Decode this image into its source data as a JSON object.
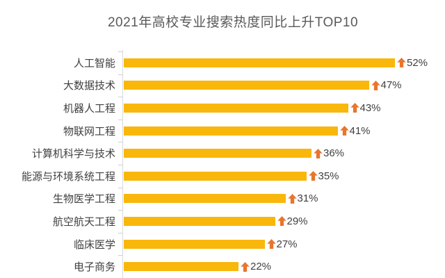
{
  "chart_data": {
    "type": "bar",
    "orientation": "horizontal",
    "title": "2021年高校专业搜索热度同比上升TOP10",
    "categories": [
      "人工智能",
      "大数据技术",
      "机器人工程",
      "物联网工程",
      "计算机科学与技术",
      "能源与环境系统工程",
      "生物医学工程",
      "航空航天工程",
      "临床医学",
      "电子商务"
    ],
    "values": [
      52,
      47,
      43,
      41,
      36,
      35,
      31,
      29,
      27,
      22
    ],
    "value_labels": [
      "52%",
      "47%",
      "43%",
      "41%",
      "36%",
      "35%",
      "31%",
      "29%",
      "27%",
      "22%"
    ],
    "xlim": [
      0,
      55
    ],
    "grid": false,
    "legend": "none",
    "bar_icon": "up-arrow-icon",
    "colors": {
      "bar": "#f9b70c",
      "arrow": "#e8762c",
      "title": "#595959",
      "category_label": "#3f3f3f",
      "value_label": "#404040",
      "axis": "#d9d9d9",
      "background": "#ffffff"
    }
  }
}
